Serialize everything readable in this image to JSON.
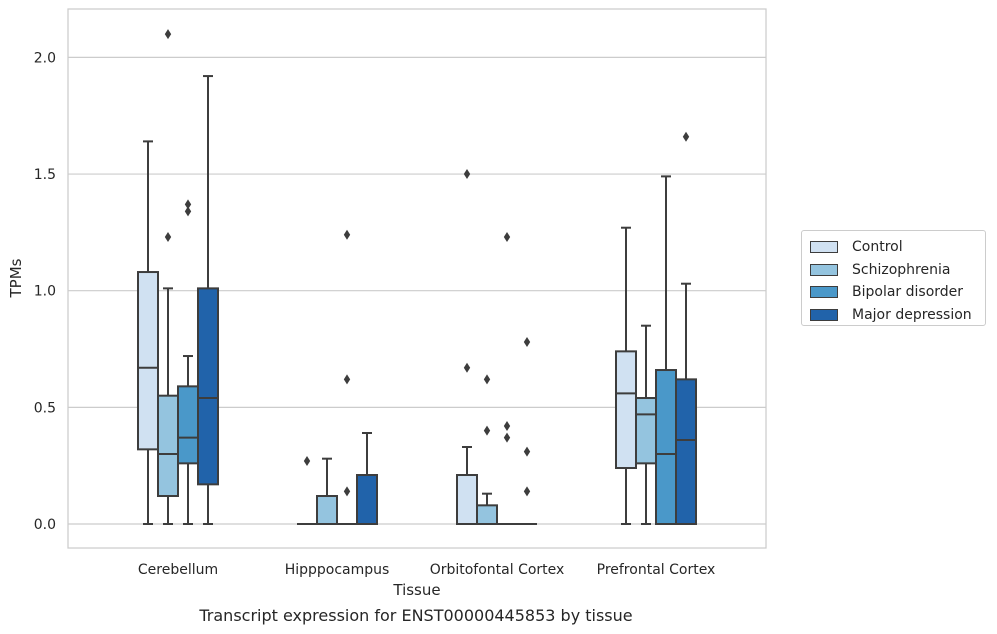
{
  "caption": "Transcript expression for ENST00000445853 by tissue",
  "chart_data": {
    "type": "box",
    "xlabel": "Tissue",
    "ylabel": "TPMs",
    "ylim": [
      -0.1,
      2.22
    ],
    "yticks": [
      "0.0",
      "0.5",
      "1.0",
      "1.5",
      "2.0"
    ],
    "grid": true,
    "legend_position": "right",
    "categories": [
      "Cerebellum",
      "Hipppocampus",
      "Orbitofontal Cortex",
      "Prefrontal Cortex"
    ],
    "series": [
      {
        "name": "Control",
        "color": "#d0e1f2",
        "boxes": [
          {
            "whislo": 0.0,
            "q1": 0.32,
            "med": 0.67,
            "q3": 1.08,
            "whishi": 1.64,
            "fliers": []
          },
          {
            "whislo": 0.0,
            "q1": 0.0,
            "med": 0.0,
            "q3": 0.0,
            "whishi": 0.0,
            "fliers": [
              0.27
            ]
          },
          {
            "whislo": 0.0,
            "q1": 0.0,
            "med": 0.0,
            "q3": 0.21,
            "whishi": 0.33,
            "fliers": [
              0.67,
              1.5
            ]
          },
          {
            "whislo": 0.0,
            "q1": 0.24,
            "med": 0.56,
            "q3": 0.74,
            "whishi": 1.27,
            "fliers": []
          }
        ]
      },
      {
        "name": "Schizophrenia",
        "color": "#94c4df",
        "boxes": [
          {
            "whislo": 0.0,
            "q1": 0.12,
            "med": 0.3,
            "q3": 0.55,
            "whishi": 1.01,
            "fliers": [
              1.23,
              2.1
            ]
          },
          {
            "whislo": 0.0,
            "q1": 0.0,
            "med": 0.0,
            "q3": 0.12,
            "whishi": 0.28,
            "fliers": []
          },
          {
            "whislo": 0.0,
            "q1": 0.0,
            "med": 0.0,
            "q3": 0.08,
            "whishi": 0.13,
            "fliers": [
              0.4,
              0.62
            ]
          },
          {
            "whislo": 0.0,
            "q1": 0.26,
            "med": 0.47,
            "q3": 0.54,
            "whishi": 0.85,
            "fliers": []
          }
        ]
      },
      {
        "name": "Bipolar disorder",
        "color": "#4a98c9",
        "boxes": [
          {
            "whislo": 0.0,
            "q1": 0.26,
            "med": 0.37,
            "q3": 0.59,
            "whishi": 0.72,
            "fliers": [
              1.34,
              1.37
            ]
          },
          {
            "whislo": 0.0,
            "q1": 0.0,
            "med": 0.0,
            "q3": 0.0,
            "whishi": 0.0,
            "fliers": [
              0.14,
              0.62,
              1.24
            ]
          },
          {
            "whislo": 0.0,
            "q1": 0.0,
            "med": 0.0,
            "q3": 0.0,
            "whishi": 0.0,
            "fliers": [
              0.37,
              0.42,
              1.23
            ]
          },
          {
            "whislo": 0.0,
            "q1": 0.0,
            "med": 0.3,
            "q3": 0.66,
            "whishi": 1.49,
            "fliers": []
          }
        ]
      },
      {
        "name": "Major depression",
        "color": "#2163aa",
        "boxes": [
          {
            "whislo": 0.0,
            "q1": 0.17,
            "med": 0.54,
            "q3": 1.01,
            "whishi": 1.92,
            "fliers": []
          },
          {
            "whislo": 0.0,
            "q1": 0.0,
            "med": 0.0,
            "q3": 0.21,
            "whishi": 0.39,
            "fliers": []
          },
          {
            "whislo": 0.0,
            "q1": 0.0,
            "med": 0.0,
            "q3": 0.0,
            "whishi": 0.0,
            "fliers": [
              0.14,
              0.31,
              0.78
            ]
          },
          {
            "whislo": 0.0,
            "q1": 0.0,
            "med": 0.36,
            "q3": 0.62,
            "whishi": 1.03,
            "fliers": [
              1.66
            ]
          }
        ]
      }
    ]
  }
}
